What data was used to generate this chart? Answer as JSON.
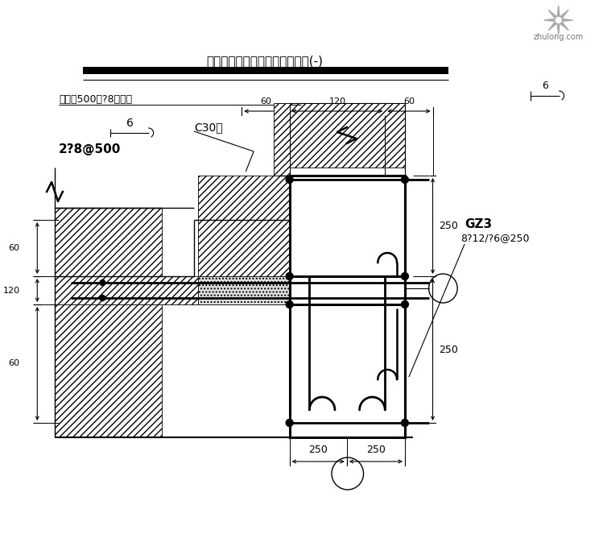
{
  "bg_color": "#ffffff",
  "title": "外围护墙与钢柱转角处连接做法(-)",
  "ann_top": "浇高度500设?8拉结筋",
  "ann_c30": "C30砼",
  "ann_rebar": "2?8@500",
  "ann_6a": "6",
  "ann_6b": "6",
  "ann_gz3": "GZ3",
  "ann_spec": "8?12/?6@250",
  "d60a": "60",
  "d120a": "120",
  "d60b": "60",
  "d60c": "60",
  "d120b": "120",
  "d60d": "60",
  "d250a": "250",
  "d250b": "250",
  "d250c": "250",
  "d250d": "250"
}
